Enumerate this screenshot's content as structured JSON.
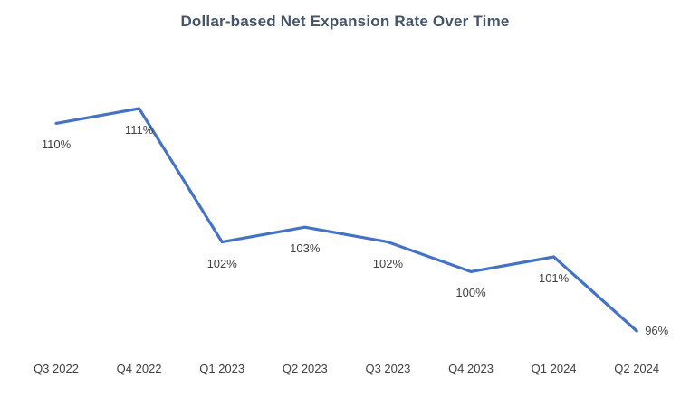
{
  "chart_data": {
    "type": "line",
    "title": "Dollar-based Net Expansion Rate Over Time",
    "categories": [
      "Q3 2022",
      "Q4 2022",
      "Q1 2023",
      "Q2 2023",
      "Q3 2023",
      "Q4 2023",
      "Q1 2024",
      "Q2 2024"
    ],
    "values": [
      110,
      111,
      102,
      103,
      102,
      100,
      101,
      96
    ],
    "data_labels": [
      "110%",
      "111%",
      "102%",
      "103%",
      "102%",
      "100%",
      "101%",
      "96%"
    ],
    "unit": "%",
    "ylim": [
      94,
      113
    ],
    "grid": false,
    "legend": false,
    "line_color": "#4472C4",
    "title_color": "#44546A",
    "label_color": "#404040"
  }
}
